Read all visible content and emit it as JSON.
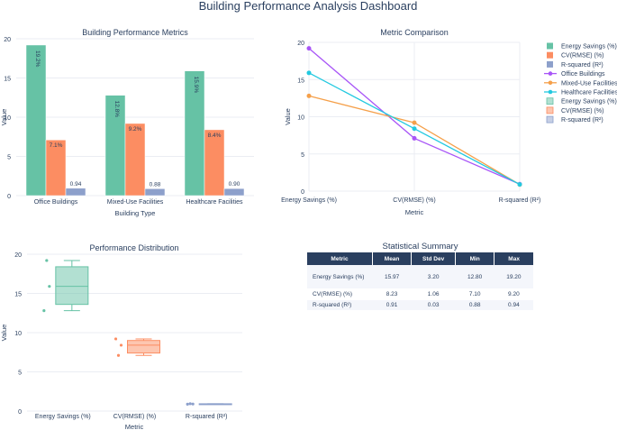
{
  "dashboard_title": "Building Performance Analysis Dashboard",
  "colors": {
    "energy": "#66c2a5",
    "cv": "#fc8d62",
    "r2": "#8da0cb",
    "office": "#a855f7",
    "mixed": "#f5a04a",
    "health": "#22c9e0",
    "text": "#2a3f5f",
    "grid": "#ebedf3",
    "header": "#2a3f5f"
  },
  "chart_data": [
    {
      "type": "bar",
      "title": "Building Performance Metrics",
      "xlabel": "Building Type",
      "ylabel": "Value",
      "ylim": [
        0,
        20
      ],
      "yticks": [
        "0",
        "5",
        "10",
        "15",
        "20"
      ],
      "categories": [
        "Office Buildings",
        "Mixed-Use Facilities",
        "Healthcare Facilities"
      ],
      "series": [
        {
          "name": "Energy Savings (%)",
          "values": [
            19.2,
            12.8,
            15.9
          ],
          "labels": [
            "19.2%",
            "12.8%",
            "15.9%"
          ]
        },
        {
          "name": "CV(RMSE) (%)",
          "values": [
            7.1,
            9.2,
            8.4
          ],
          "labels": [
            "7.1%",
            "9.2%",
            "8.4%"
          ]
        },
        {
          "name": "R-squared (R²)",
          "values": [
            0.94,
            0.88,
            0.9
          ],
          "labels": [
            "0.94",
            "0.88",
            "0.90"
          ]
        }
      ]
    },
    {
      "type": "line",
      "title": "Metric Comparison",
      "xlabel": "Metric",
      "ylabel": "Value",
      "ylim": [
        0,
        20
      ],
      "yticks": [
        "0",
        "5",
        "10",
        "15",
        "20"
      ],
      "categories": [
        "Energy Savings (%)",
        "CV(RMSE) (%)",
        "R-squared (R²)"
      ],
      "series": [
        {
          "name": "Office Buildings",
          "values": [
            19.2,
            7.1,
            0.94
          ]
        },
        {
          "name": "Mixed-Use Facilities",
          "values": [
            12.8,
            9.2,
            0.88
          ]
        },
        {
          "name": "Healthcare Facilities",
          "values": [
            15.9,
            8.4,
            0.9
          ]
        }
      ]
    },
    {
      "type": "box",
      "title": "Performance Distribution",
      "xlabel": "Metric",
      "ylabel": "Value",
      "ylim": [
        0,
        20
      ],
      "yticks": [
        "0",
        "5",
        "10",
        "15",
        "20"
      ],
      "categories": [
        "Energy Savings (%)",
        "CV(RMSE) (%)",
        "R-squared (R²)"
      ],
      "series": [
        {
          "name": "Energy Savings (%)",
          "points": [
            19.2,
            12.8,
            15.9
          ],
          "min": 12.8,
          "q1": 13.6,
          "median": 15.9,
          "q3": 18.4,
          "max": 19.2
        },
        {
          "name": "CV(RMSE) (%)",
          "points": [
            7.1,
            9.2,
            8.4
          ],
          "min": 7.1,
          "q1": 7.4,
          "median": 8.4,
          "q3": 9.0,
          "max": 9.2
        },
        {
          "name": "R-squared (R²)",
          "points": [
            0.94,
            0.88,
            0.9
          ],
          "min": 0.88,
          "q1": 0.885,
          "median": 0.9,
          "q3": 0.93,
          "max": 0.94
        }
      ]
    },
    {
      "type": "table",
      "title": "Statistical Summary",
      "columns": [
        "Metric",
        "Mean",
        "Std Dev",
        "Min",
        "Max"
      ],
      "rows": [
        [
          "Energy Savings (%)",
          "15.97",
          "3.20",
          "12.80",
          "19.20"
        ],
        [
          "CV(RMSE) (%)",
          "8.23",
          "1.06",
          "7.10",
          "9.20"
        ],
        [
          "R-squared (R²)",
          "0.91",
          "0.03",
          "0.88",
          "0.94"
        ]
      ]
    }
  ],
  "legend": [
    "Energy Savings (%)",
    "CV(RMSE) (%)",
    "R-squared (R²)",
    "Office Buildings",
    "Mixed-Use Facilities",
    "Healthcare Facilities",
    "Energy Savings (%)",
    "CV(RMSE) (%)",
    "R-squared (R²)"
  ]
}
